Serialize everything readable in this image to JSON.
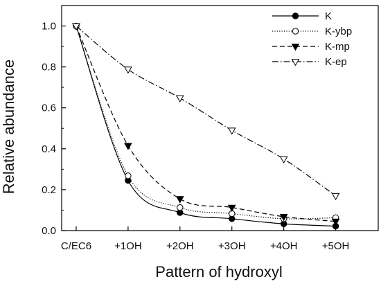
{
  "chart_data": {
    "type": "line",
    "title": "",
    "xlabel": "Pattern of hydroxyl",
    "ylabel": "Relative abundance",
    "categories": [
      "C/EC6",
      "+1OH",
      "+2OH",
      "+3OH",
      "+4OH",
      "+5OH"
    ],
    "ylim": [
      0.0,
      1.1
    ],
    "yticks": [
      0.0,
      0.2,
      0.4,
      0.6,
      0.8,
      1.0
    ],
    "ytick_labels": [
      "0.0",
      "0.2",
      "0.4",
      "0.6",
      "0.8",
      "1.0"
    ],
    "grid": false,
    "legend_position": "top-right",
    "series": [
      {
        "name": "K",
        "values": [
          1.0,
          0.245,
          0.088,
          0.058,
          0.033,
          0.022
        ],
        "line": "solid",
        "marker": "circle-filled",
        "color": "#000000"
      },
      {
        "name": "K-ybp",
        "values": [
          1.0,
          0.268,
          0.113,
          0.083,
          0.058,
          0.063
        ],
        "line": "dotted",
        "marker": "circle-open",
        "color": "#000000"
      },
      {
        "name": "K-mp",
        "values": [
          1.0,
          0.415,
          0.155,
          0.113,
          0.068,
          0.045
        ],
        "line": "dashed",
        "marker": "triangle-down-filled",
        "color": "#000000"
      },
      {
        "name": "K-ep",
        "values": [
          1.0,
          0.788,
          0.648,
          0.49,
          0.35,
          0.17
        ],
        "line": "dashdot",
        "marker": "triangle-down-open",
        "color": "#000000"
      }
    ]
  }
}
